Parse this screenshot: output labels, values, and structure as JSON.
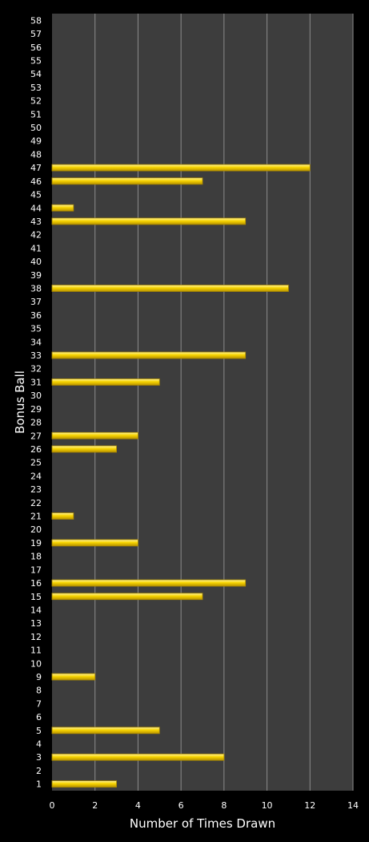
{
  "chart_data": {
    "type": "bar",
    "orientation": "horizontal",
    "xlabel": "Number of Times Drawn",
    "ylabel": "Bonus Ball",
    "xlim": [
      0,
      14
    ],
    "x_ticks": [
      "0",
      "2",
      "4",
      "6",
      "8",
      "10",
      "12",
      "14"
    ],
    "categories": [
      "1",
      "2",
      "3",
      "4",
      "5",
      "6",
      "7",
      "8",
      "9",
      "10",
      "11",
      "12",
      "13",
      "14",
      "15",
      "16",
      "17",
      "18",
      "19",
      "20",
      "21",
      "22",
      "23",
      "24",
      "25",
      "26",
      "27",
      "28",
      "29",
      "30",
      "31",
      "32",
      "33",
      "34",
      "35",
      "36",
      "37",
      "38",
      "39",
      "40",
      "41",
      "42",
      "43",
      "44",
      "45",
      "46",
      "47",
      "48",
      "49",
      "50",
      "51",
      "52",
      "53",
      "54",
      "55",
      "56",
      "57",
      "58"
    ],
    "values": [
      3,
      0,
      8,
      0,
      5,
      0,
      0,
      0,
      2,
      0,
      0,
      0,
      0,
      0,
      7,
      9,
      0,
      0,
      4,
      0,
      1,
      0,
      0,
      0,
      0,
      3,
      4,
      0,
      0,
      0,
      5,
      0,
      9,
      0,
      0,
      0,
      0,
      11,
      0,
      0,
      0,
      0,
      9,
      1,
      0,
      7,
      12,
      0,
      0,
      0,
      0,
      0,
      0,
      0,
      0,
      0,
      0,
      0
    ],
    "grid": "vertical",
    "colors": {
      "background": "#000000",
      "plot_area": "#3d3d3d",
      "gridline": "#8c8c8c",
      "bar": "#f2c800",
      "bar_highlight": "#fff06a",
      "bar_edge": "#a88700",
      "text": "#ffffff"
    }
  }
}
